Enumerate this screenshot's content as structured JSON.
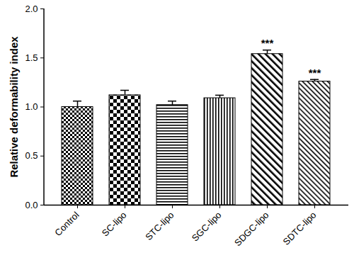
{
  "chart_data": {
    "type": "bar",
    "categories": [
      "Control",
      "SC-lipo",
      "STC-lipo",
      "SGC-lipo",
      "SDGC-lipo",
      "SDTC-lipo"
    ],
    "values": [
      1.0,
      1.12,
      1.02,
      1.09,
      1.54,
      1.26
    ],
    "errors": [
      0.06,
      0.05,
      0.04,
      0.03,
      0.04,
      0.02
    ],
    "annotations": [
      null,
      null,
      null,
      null,
      "***",
      "***"
    ],
    "color": "#000000",
    "ylabel": "Relative deformability index",
    "ylim": [
      0,
      2
    ],
    "yticks": [
      {
        "value": 0,
        "label": "0.0"
      },
      {
        "value": 0.5,
        "label": "0.5"
      },
      {
        "value": 1,
        "label": "1.0"
      },
      {
        "value": 1.5,
        "label": "1.5"
      },
      {
        "value": 2,
        "label": "2.0"
      }
    ],
    "grid": false
  }
}
